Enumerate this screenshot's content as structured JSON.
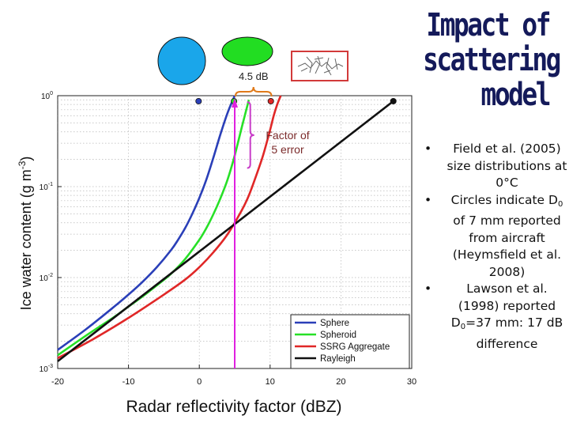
{
  "slide": {
    "title_lines": [
      "Impact of",
      "scattering",
      "model"
    ],
    "bullets": [
      {
        "id": "b1",
        "parts": [
          "Field et al. (2005) size distributions at 0°C"
        ]
      },
      {
        "id": "b2",
        "parts": [
          "Circles indicate D",
          "0",
          " of 7 mm reported from aircraft (Heymsfield et al. 2008)"
        ]
      },
      {
        "id": "b3",
        "parts": [
          "Lawson et al. (1998) reported D",
          "0",
          "=37 mm: 17 dB difference"
        ]
      }
    ]
  },
  "shape_icons": [
    {
      "name": "sphere-shape-icon",
      "color": "#1aa6ea"
    },
    {
      "name": "spheroid-shape-icon",
      "color": "#22dd22"
    },
    {
      "name": "aggregate-shape-icon",
      "color": "#d23a3a"
    }
  ],
  "chart_data": {
    "type": "line",
    "xlabel": "Radar reflectivity factor (dBZ)",
    "ylabel": "Ice water content (g m",
    "ylabel_sup": "-3",
    "ylabel_end": ")",
    "xlim": [
      -20,
      30
    ],
    "ylim": [
      0.001,
      1
    ],
    "y_scale": "log",
    "x_ticks": [
      "-20",
      "-10",
      "0",
      "10",
      "20",
      "30"
    ],
    "y_ticks": [
      {
        "value": 1,
        "base": "10",
        "exp": "0"
      },
      {
        "value": 0.1,
        "base": "10",
        "exp": "-1"
      },
      {
        "value": 0.01,
        "base": "10",
        "exp": "-2"
      },
      {
        "value": 0.001,
        "base": "10",
        "exp": "-3"
      }
    ],
    "grid": true,
    "legend_position": "bottom-right",
    "series": [
      {
        "name": "Sphere",
        "color": "#2a3fb8",
        "x": [
          -20,
          -16,
          -12,
          -10,
          -8,
          -6,
          -4,
          -3,
          -2,
          -1,
          0,
          1,
          2,
          3,
          4,
          5
        ],
        "y": [
          0.0016,
          0.0027,
          0.0048,
          0.0065,
          0.009,
          0.013,
          0.02,
          0.026,
          0.035,
          0.05,
          0.075,
          0.12,
          0.21,
          0.38,
          0.65,
          1.0
        ],
        "marker": {
          "x": -0.1,
          "y": 0.87
        }
      },
      {
        "name": "Spheroid",
        "color": "#27e027",
        "x": [
          -20,
          -16,
          -12,
          -10,
          -8,
          -6,
          -4,
          -2,
          0,
          1,
          2,
          3,
          4,
          5,
          6,
          7
        ],
        "y": [
          0.0014,
          0.0023,
          0.0037,
          0.0048,
          0.0062,
          0.0082,
          0.011,
          0.016,
          0.026,
          0.035,
          0.05,
          0.075,
          0.12,
          0.22,
          0.45,
          0.9
        ],
        "marker": {
          "x": 4.9,
          "y": 0.87
        }
      },
      {
        "name": "SSRG Aggregate",
        "color": "#e02727",
        "x": [
          -20,
          -15,
          -10,
          -5,
          -2,
          0,
          2,
          4,
          6,
          7,
          8,
          9,
          10,
          10.5,
          11,
          11.5
        ],
        "y": [
          0.0013,
          0.0021,
          0.0036,
          0.0065,
          0.0095,
          0.013,
          0.019,
          0.03,
          0.055,
          0.08,
          0.13,
          0.22,
          0.42,
          0.6,
          0.8,
          1.0
        ],
        "marker": {
          "x": 10.1,
          "y": 0.87
        }
      },
      {
        "name": "Rayleigh",
        "color": "#111111",
        "x": [
          -20,
          27.4
        ],
        "y": [
          0.0012,
          0.87
        ],
        "marker": {
          "x": 27.4,
          "y": 0.87
        }
      }
    ],
    "annotations": {
      "db_label": "4.5 dB",
      "factor_label_1": "Factor of",
      "factor_label_2": "5 error",
      "vertical_line_x": 5,
      "vertical_line_color": "#e020e0",
      "brace_color": "#e07a1a",
      "factor_brace_color": "#c83dc8"
    }
  }
}
